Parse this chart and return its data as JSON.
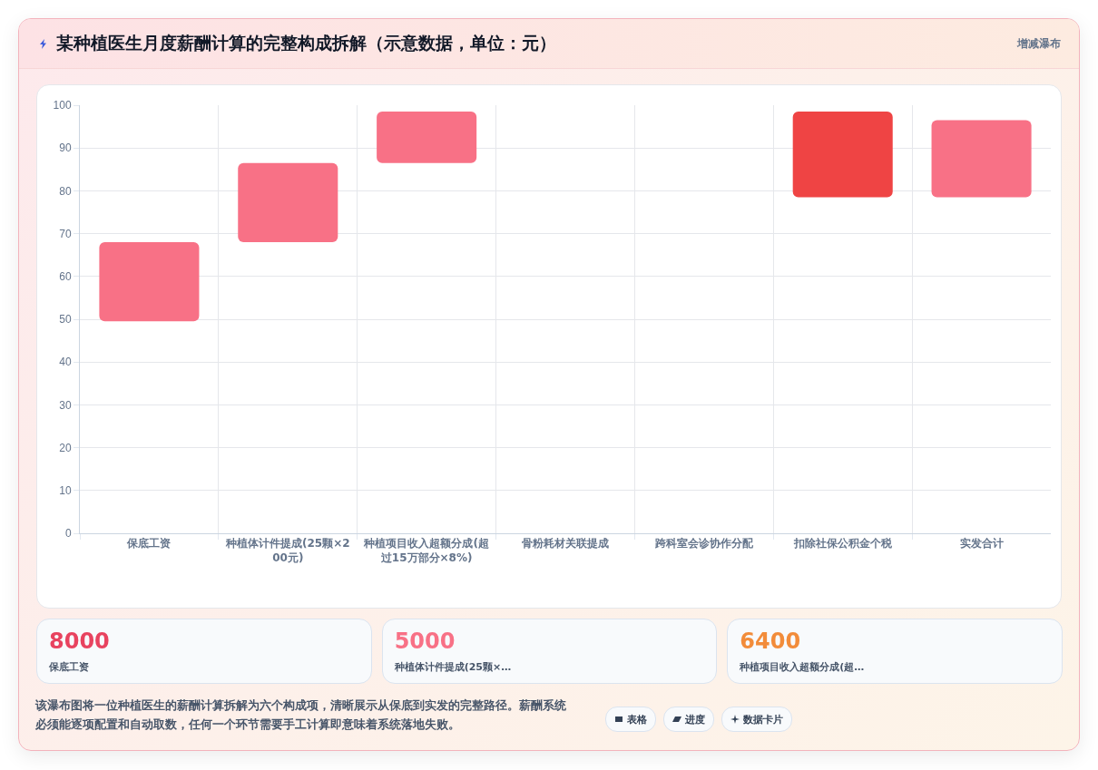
{
  "chart_data": [
    {
      "type": "bar",
      "title": "某种植医生月度薪酬计算的完整构成拆解（示意数据，单位：元）",
      "categories": [
        "保底工资",
        "种植体计件提成(25颗×200元)",
        "种植项目收入超额分成(超过15万部分×8%)",
        "骨粉耗材关联提成",
        "跨科室会诊协作分配",
        "扣除社保公积金个税",
        "实发合计"
      ],
      "base": [
        49.5,
        68,
        86.5,
        null,
        null,
        78.5,
        78.5
      ],
      "values": [
        18.5,
        18.5,
        12,
        null,
        null,
        20,
        18
      ],
      "colors": [
        "#f87186",
        "#f87186",
        "#f87186",
        "#f87186",
        "#f87186",
        "#ef4444",
        "#f87186"
      ],
      "ylim": [
        0,
        100
      ],
      "yticks": [
        0,
        10,
        20,
        30,
        40,
        50,
        60,
        70,
        80,
        90,
        100
      ],
      "grid": true,
      "annotations": [
        "增减瀑布",
        "该瀑布图将一位种植医生的薪酬计算拆解为六个构成项，清晰展示从保底到实发的完整路径。薪酬系统必须能逐项配置和自动取数，任何一个环节需要手工计算即意味着系统落地失败。",
        "表格",
        "进度",
        "数据卡片"
      ]
    },
    {
      "type": "other",
      "annotations": [
        "8000",
        "保底工资",
        "5000",
        "种植体计件提成(25颗×…",
        "6400",
        "种植项目收入超额分成(超…"
      ]
    }
  ]
}
